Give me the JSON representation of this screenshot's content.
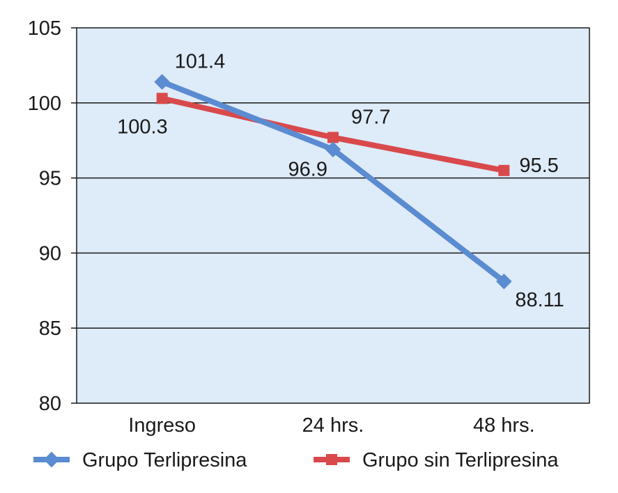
{
  "chart_data": {
    "type": "line",
    "categories": [
      "Ingreso",
      "24 hrs.",
      "48 hrs."
    ],
    "ylim": [
      80,
      105
    ],
    "yticks": [
      80,
      85,
      90,
      95,
      100,
      105
    ],
    "grid": true,
    "legend_position": "bottom",
    "plot_background": "#deebf8",
    "series": [
      {
        "name": "Grupo Terlipresina",
        "values": [
          101.4,
          96.9,
          88.11
        ],
        "labels": [
          "101.4",
          "96.9",
          "88.11"
        ],
        "color": "#5b8bd0",
        "marker": "diamond"
      },
      {
        "name": "Grupo sin Terlipresina",
        "values": [
          100.3,
          97.7,
          95.5
        ],
        "labels": [
          "100.3",
          "97.7",
          "95.5"
        ],
        "color": "#d9494c",
        "marker": "square"
      }
    ]
  }
}
